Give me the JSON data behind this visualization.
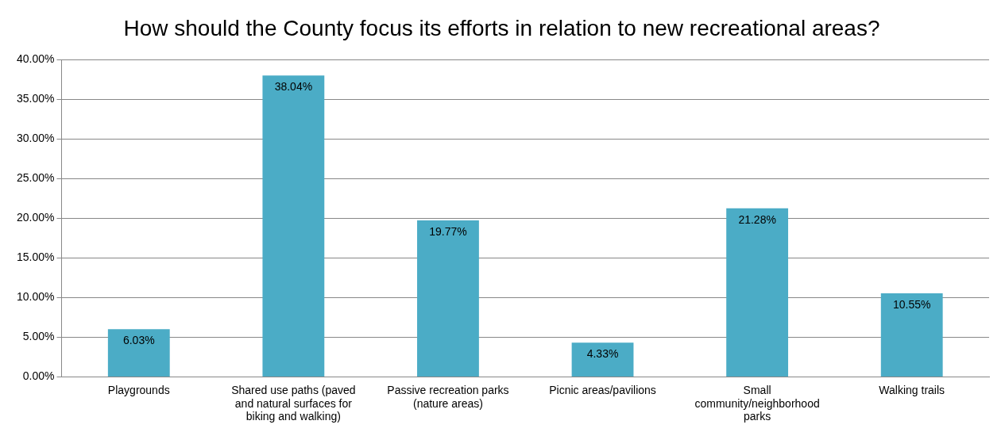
{
  "chart_data": {
    "type": "bar",
    "title": "How should the County focus its efforts in relation to new recreational areas?",
    "categories": [
      "Playgrounds",
      "Shared use paths (paved and natural surfaces for biking and walking)",
      "Passive recreation parks (nature areas)",
      "Picnic areas/pavilions",
      "Small community/neighborhood parks",
      "Walking trails"
    ],
    "values": [
      6.03,
      38.04,
      19.77,
      4.33,
      21.28,
      10.55
    ],
    "value_labels": [
      "6.03%",
      "38.04%",
      "19.77%",
      "4.33%",
      "21.28%",
      "10.55%"
    ],
    "color": "#4bacc6",
    "ylim": [
      0,
      40
    ],
    "yticks": [
      {
        "value": 0,
        "label": "0.00%"
      },
      {
        "value": 5,
        "label": "5.00%"
      },
      {
        "value": 10,
        "label": "10.00%"
      },
      {
        "value": 15,
        "label": "15.00%"
      },
      {
        "value": 20,
        "label": "20.00%"
      },
      {
        "value": 25,
        "label": "25.00%"
      },
      {
        "value": 30,
        "label": "30.00%"
      },
      {
        "value": 35,
        "label": "35.00%"
      },
      {
        "value": 40,
        "label": "40.00%"
      }
    ],
    "grid": "y",
    "legend": false
  }
}
